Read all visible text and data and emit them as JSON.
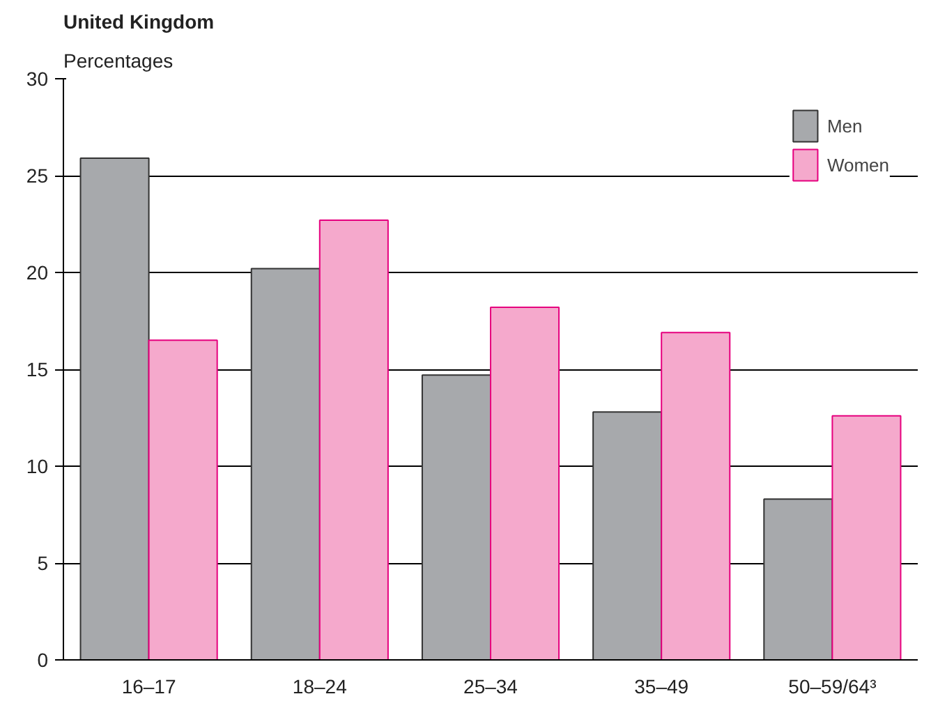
{
  "chart_data": {
    "type": "bar",
    "title": "United Kingdom",
    "subtitle": "Percentages",
    "categories": [
      "16–17",
      "18–24",
      "25–34",
      "35–49",
      "50–59/64³"
    ],
    "series": [
      {
        "name": "Men",
        "color": "#a7a9ac",
        "values": [
          25.9,
          20.2,
          14.7,
          12.8,
          8.3
        ]
      },
      {
        "name": "Women",
        "color": "#f5a9cc",
        "values": [
          16.5,
          22.7,
          18.2,
          16.9,
          12.6
        ]
      }
    ],
    "ylim": [
      0,
      30
    ],
    "yticks": [
      0,
      5,
      10,
      15,
      20,
      25,
      30
    ],
    "grid": "y",
    "legend": "top right"
  }
}
